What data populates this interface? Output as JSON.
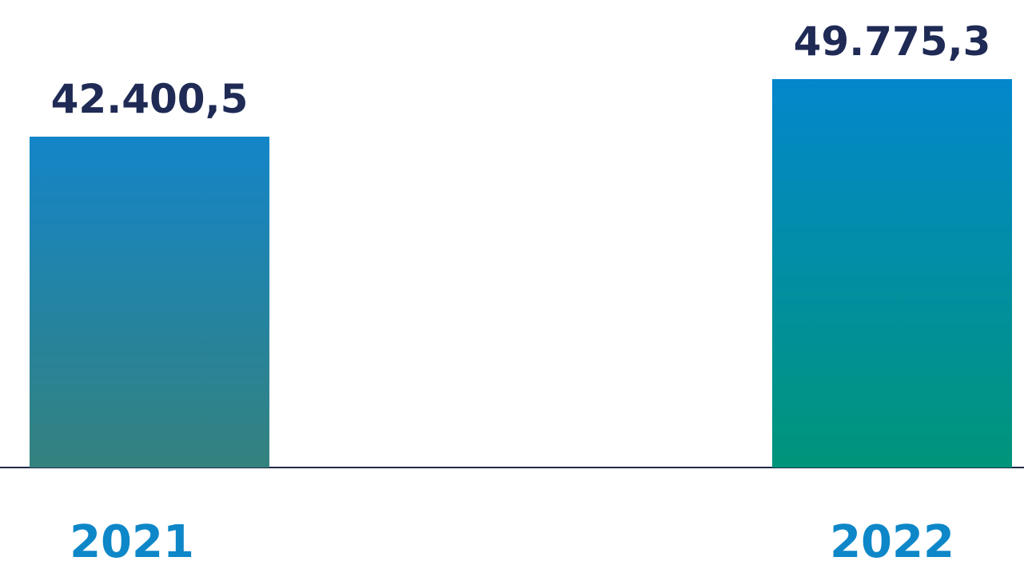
{
  "chart_data": {
    "type": "bar",
    "categories": [
      "2021",
      "2022"
    ],
    "values": [
      42400.5,
      49775.3
    ],
    "value_labels": [
      "42.400,5",
      "49.775,3"
    ],
    "colors": [
      [
        "#1485c8",
        "#34827e"
      ],
      [
        "#0487cc",
        "#00957a"
      ]
    ]
  }
}
